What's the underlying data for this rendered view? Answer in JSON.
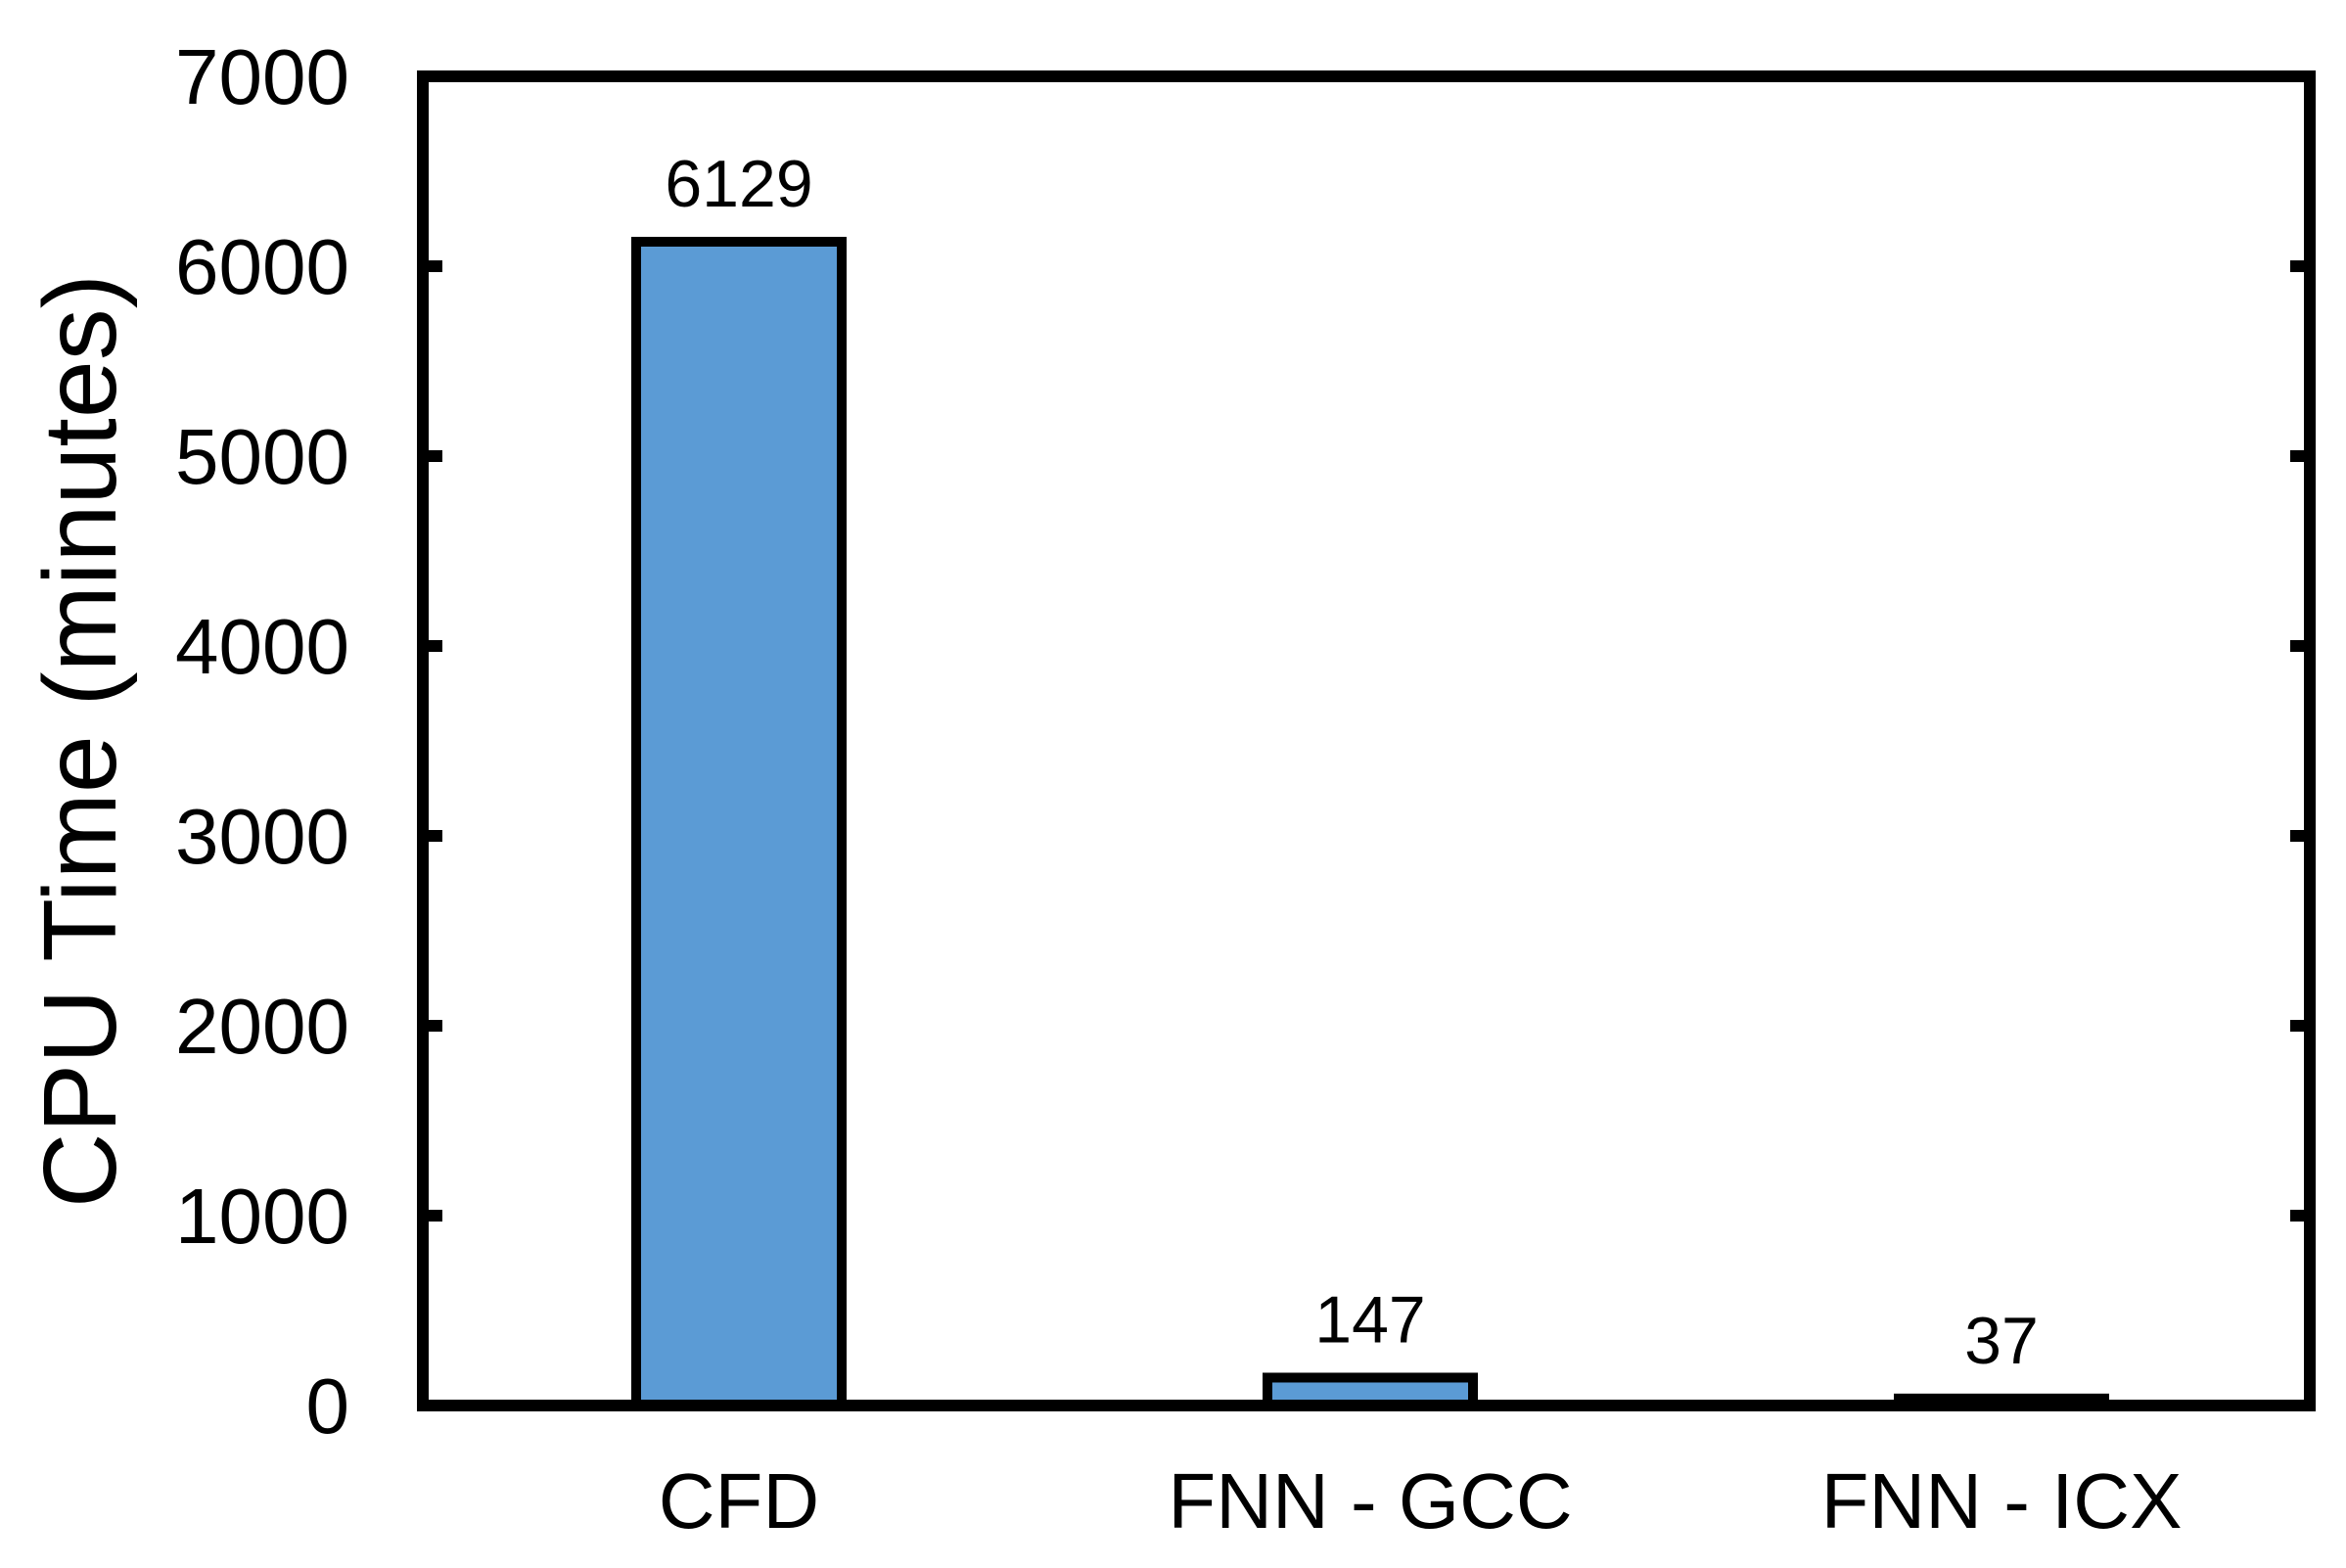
{
  "chart_data": {
    "type": "bar",
    "categories": [
      "CFD",
      "FNN - GCC",
      "FNN - ICX"
    ],
    "values": [
      6129,
      147,
      37
    ],
    "data_labels": [
      "6129",
      "147",
      "37"
    ],
    "title": "",
    "xlabel": "",
    "ylabel": "CPU Time (minutes)",
    "ylim": [
      0,
      7000
    ],
    "yticks": [
      0,
      1000,
      2000,
      3000,
      4000,
      5000,
      6000,
      7000
    ],
    "ytick_labels": [
      "0",
      "1000",
      "2000",
      "3000",
      "4000",
      "5000",
      "6000",
      "7000"
    ],
    "grid": false,
    "legend": "none",
    "colors": {
      "bar_fill": "#5b9bd5",
      "bar_edge": "#000000",
      "axis": "#000000"
    }
  }
}
